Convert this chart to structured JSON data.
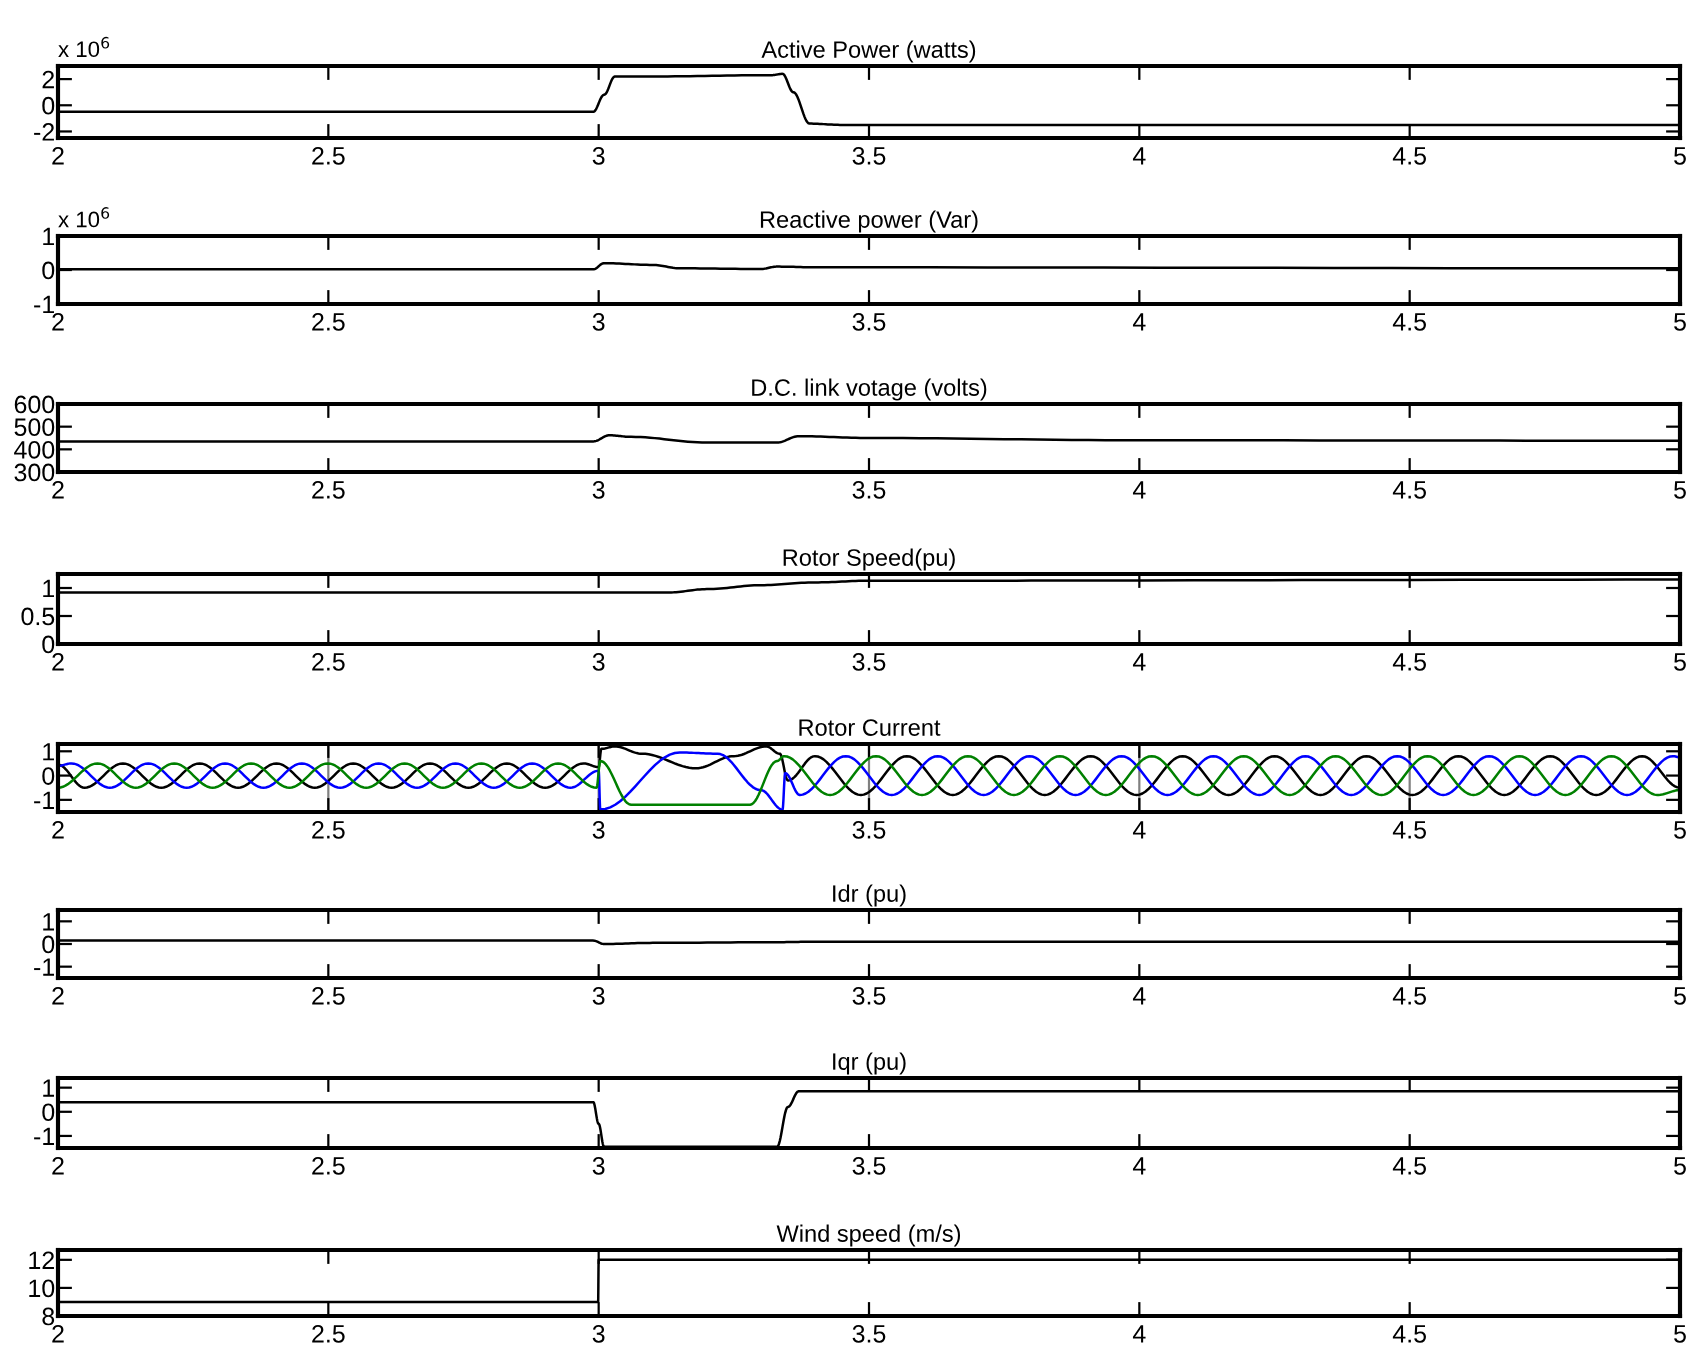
{
  "chart_data": [
    {
      "type": "line",
      "title": "Active Power (watts)",
      "annotations": [
        "x 10$^{6}$"
      ],
      "xlim": [
        2,
        5
      ],
      "xticks": [
        2,
        2.5,
        3,
        3.5,
        4,
        4.5,
        5
      ],
      "ylim": [
        -2.5,
        3
      ],
      "yticks": [
        -2,
        0,
        2
      ],
      "series": [
        {
          "color": "#000000",
          "x": [
            2,
            2.3,
            2.6,
            2.99,
            3.01,
            3.03,
            3.1,
            3.32,
            3.34,
            3.36,
            3.39,
            3.45,
            5
          ],
          "values": [
            -0.5,
            -0.5,
            -0.5,
            -0.5,
            0.8,
            2.2,
            2.2,
            2.3,
            2.4,
            1.0,
            -1.4,
            -1.5,
            -1.5
          ]
        }
      ]
    },
    {
      "type": "line",
      "title": "Reactive power (Var)",
      "annotations": [
        "x 10$^{6}$"
      ],
      "xlim": [
        2,
        5
      ],
      "xticks": [
        2,
        2.5,
        3,
        3.5,
        4,
        4.5,
        5
      ],
      "ylim": [
        -1,
        1
      ],
      "yticks": [
        -1,
        0,
        1
      ],
      "series": [
        {
          "color": "#000000",
          "x": [
            2,
            2.99,
            3.01,
            3.1,
            3.15,
            3.3,
            3.33,
            3.4,
            5
          ],
          "values": [
            0.02,
            0.02,
            0.2,
            0.15,
            0.05,
            0.03,
            0.1,
            0.08,
            0.05
          ]
        }
      ]
    },
    {
      "type": "line",
      "title": "D.C. link votage (volts)",
      "xlim": [
        2,
        5
      ],
      "xticks": [
        2,
        2.5,
        3,
        3.5,
        4,
        4.5,
        5
      ],
      "ylim": [
        300,
        600
      ],
      "yticks": [
        300,
        400,
        500,
        600
      ],
      "series": [
        {
          "color": "#000000",
          "x": [
            2,
            2.99,
            3.02,
            3.06,
            3.2,
            3.33,
            3.37,
            3.5,
            4,
            5
          ],
          "values": [
            435,
            435,
            462,
            455,
            430,
            430,
            458,
            450,
            440,
            438
          ]
        }
      ]
    },
    {
      "type": "line",
      "title": "Rotor Speed(pu)",
      "xlim": [
        2,
        5
      ],
      "xticks": [
        2,
        2.5,
        3,
        3.5,
        4,
        4.5,
        5
      ],
      "ylim": [
        0,
        1.25
      ],
      "yticks": [
        0,
        0.5,
        1
      ],
      "series": [
        {
          "color": "#000000",
          "x": [
            2,
            3.13,
            3.2,
            3.3,
            3.4,
            3.5,
            5
          ],
          "values": [
            0.92,
            0.92,
            0.98,
            1.05,
            1.1,
            1.13,
            1.15
          ]
        }
      ]
    },
    {
      "type": "line",
      "title": "Rotor Current",
      "grid": "x",
      "xlim": [
        2,
        5
      ],
      "xticks": [
        2,
        2.5,
        3,
        3.5,
        4,
        4.5,
        5
      ],
      "ylim": [
        -1.5,
        1.3
      ],
      "yticks": [
        -1,
        0,
        1
      ],
      "series": [
        {
          "color": "#000000",
          "x": [
            2.0,
            2.049,
            2.12,
            2.191,
            2.262,
            2.333,
            2.404,
            2.475,
            2.546,
            2.617,
            2.688,
            2.759,
            2.83,
            2.901,
            2.972,
            3.0,
            3.005,
            3.03,
            3.08,
            3.18,
            3.25,
            3.31,
            3.335,
            3.35,
            3.4,
            3.485,
            3.57,
            3.655,
            3.74,
            3.825,
            3.91,
            3.995,
            4.08,
            4.165,
            4.25,
            4.335,
            4.42,
            4.505,
            4.59,
            4.675,
            4.76,
            4.845,
            4.93,
            5.0
          ],
          "values": [
            0.45,
            -0.5,
            0.5,
            -0.5,
            0.5,
            -0.5,
            0.5,
            -0.5,
            0.5,
            -0.5,
            0.5,
            -0.5,
            0.5,
            -0.5,
            0.5,
            0.35,
            1.1,
            1.2,
            0.9,
            0.3,
            0.8,
            1.2,
            0.9,
            -0.2,
            0.8,
            -0.8,
            0.8,
            -0.8,
            0.8,
            -0.8,
            0.8,
            -0.8,
            0.8,
            -0.8,
            0.8,
            -0.8,
            0.8,
            -0.8,
            0.8,
            -0.8,
            0.8,
            -0.8,
            0.8,
            -0.5
          ]
        },
        {
          "color": "#0000ff",
          "x": [
            2.0,
            2.025,
            2.096,
            2.167,
            2.238,
            2.309,
            2.38,
            2.451,
            2.522,
            2.593,
            2.664,
            2.735,
            2.806,
            2.877,
            2.948,
            3.0,
            3.003,
            3.15,
            3.22,
            3.3,
            3.34,
            3.345,
            3.372,
            3.457,
            3.542,
            3.627,
            3.712,
            3.797,
            3.882,
            3.967,
            4.052,
            4.137,
            4.222,
            4.307,
            4.392,
            4.477,
            4.562,
            4.647,
            4.732,
            4.817,
            4.902,
            4.987,
            5.0
          ],
          "values": [
            0.4,
            0.5,
            -0.5,
            0.5,
            -0.5,
            0.5,
            -0.5,
            0.5,
            -0.5,
            0.5,
            -0.5,
            0.5,
            -0.5,
            0.5,
            -0.5,
            0.2,
            -1.4,
            0.95,
            0.9,
            -0.6,
            -1.4,
            0.1,
            -0.8,
            0.8,
            -0.8,
            0.8,
            -0.8,
            0.8,
            -0.8,
            0.8,
            -0.8,
            0.8,
            -0.8,
            0.8,
            -0.8,
            0.8,
            -0.8,
            0.8,
            -0.8,
            0.8,
            -0.8,
            0.8,
            0.75
          ]
        },
        {
          "color": "#008000",
          "x": [
            2.0,
            2.073,
            2.144,
            2.215,
            2.286,
            2.357,
            2.428,
            2.499,
            2.57,
            2.641,
            2.712,
            2.783,
            2.854,
            2.925,
            2.996,
            3.003,
            3.06,
            3.28,
            3.33,
            3.343,
            3.428,
            3.513,
            3.598,
            3.683,
            3.768,
            3.853,
            3.938,
            4.023,
            4.108,
            4.193,
            4.278,
            4.363,
            4.448,
            4.533,
            4.618,
            4.703,
            4.788,
            4.873,
            4.958,
            5.0
          ],
          "values": [
            -0.5,
            0.5,
            -0.5,
            0.5,
            -0.5,
            0.5,
            -0.5,
            0.5,
            -0.5,
            0.5,
            -0.5,
            0.5,
            -0.5,
            0.5,
            -0.5,
            0.6,
            -1.2,
            -1.2,
            0.6,
            0.8,
            -0.8,
            0.8,
            -0.8,
            0.8,
            -0.8,
            0.8,
            -0.8,
            0.8,
            -0.8,
            0.8,
            -0.8,
            0.8,
            -0.8,
            0.8,
            -0.8,
            0.8,
            -0.8,
            0.8,
            -0.8,
            -0.6
          ]
        }
      ]
    },
    {
      "type": "line",
      "title": "Idr (pu)",
      "xlim": [
        2,
        5
      ],
      "xticks": [
        2,
        2.5,
        3,
        3.5,
        4,
        4.5,
        5
      ],
      "ylim": [
        -1.5,
        1.5
      ],
      "yticks": [
        -1,
        0,
        1
      ],
      "series": [
        {
          "color": "#000000",
          "x": [
            2,
            2.99,
            3.01,
            3.1,
            3.33,
            3.4,
            5
          ],
          "values": [
            0.15,
            0.15,
            0.0,
            0.05,
            0.08,
            0.1,
            0.1
          ]
        }
      ]
    },
    {
      "type": "line",
      "title": "Iqr (pu)",
      "xlim": [
        2,
        5
      ],
      "xticks": [
        2,
        2.5,
        3,
        3.5,
        4,
        4.5,
        5
      ],
      "ylim": [
        -1.5,
        1.4
      ],
      "yticks": [
        -1,
        0,
        1
      ],
      "series": [
        {
          "color": "#000000",
          "x": [
            2,
            2.99,
            3.0,
            3.01,
            3.33,
            3.35,
            3.37,
            5
          ],
          "values": [
            0.4,
            0.4,
            -0.5,
            -1.45,
            -1.45,
            0.2,
            0.85,
            0.85
          ]
        }
      ]
    },
    {
      "type": "line",
      "title": "Wind speed (m/s)",
      "xlim": [
        2,
        5
      ],
      "xticks": [
        2,
        2.5,
        3,
        3.5,
        4,
        4.5,
        5
      ],
      "ylim": [
        8,
        12.7
      ],
      "yticks": [
        8,
        10,
        12
      ],
      "series": [
        {
          "color": "#000000",
          "x": [
            2,
            2.999,
            3.0,
            5
          ],
          "values": [
            9,
            9,
            12,
            12
          ]
        }
      ]
    }
  ]
}
